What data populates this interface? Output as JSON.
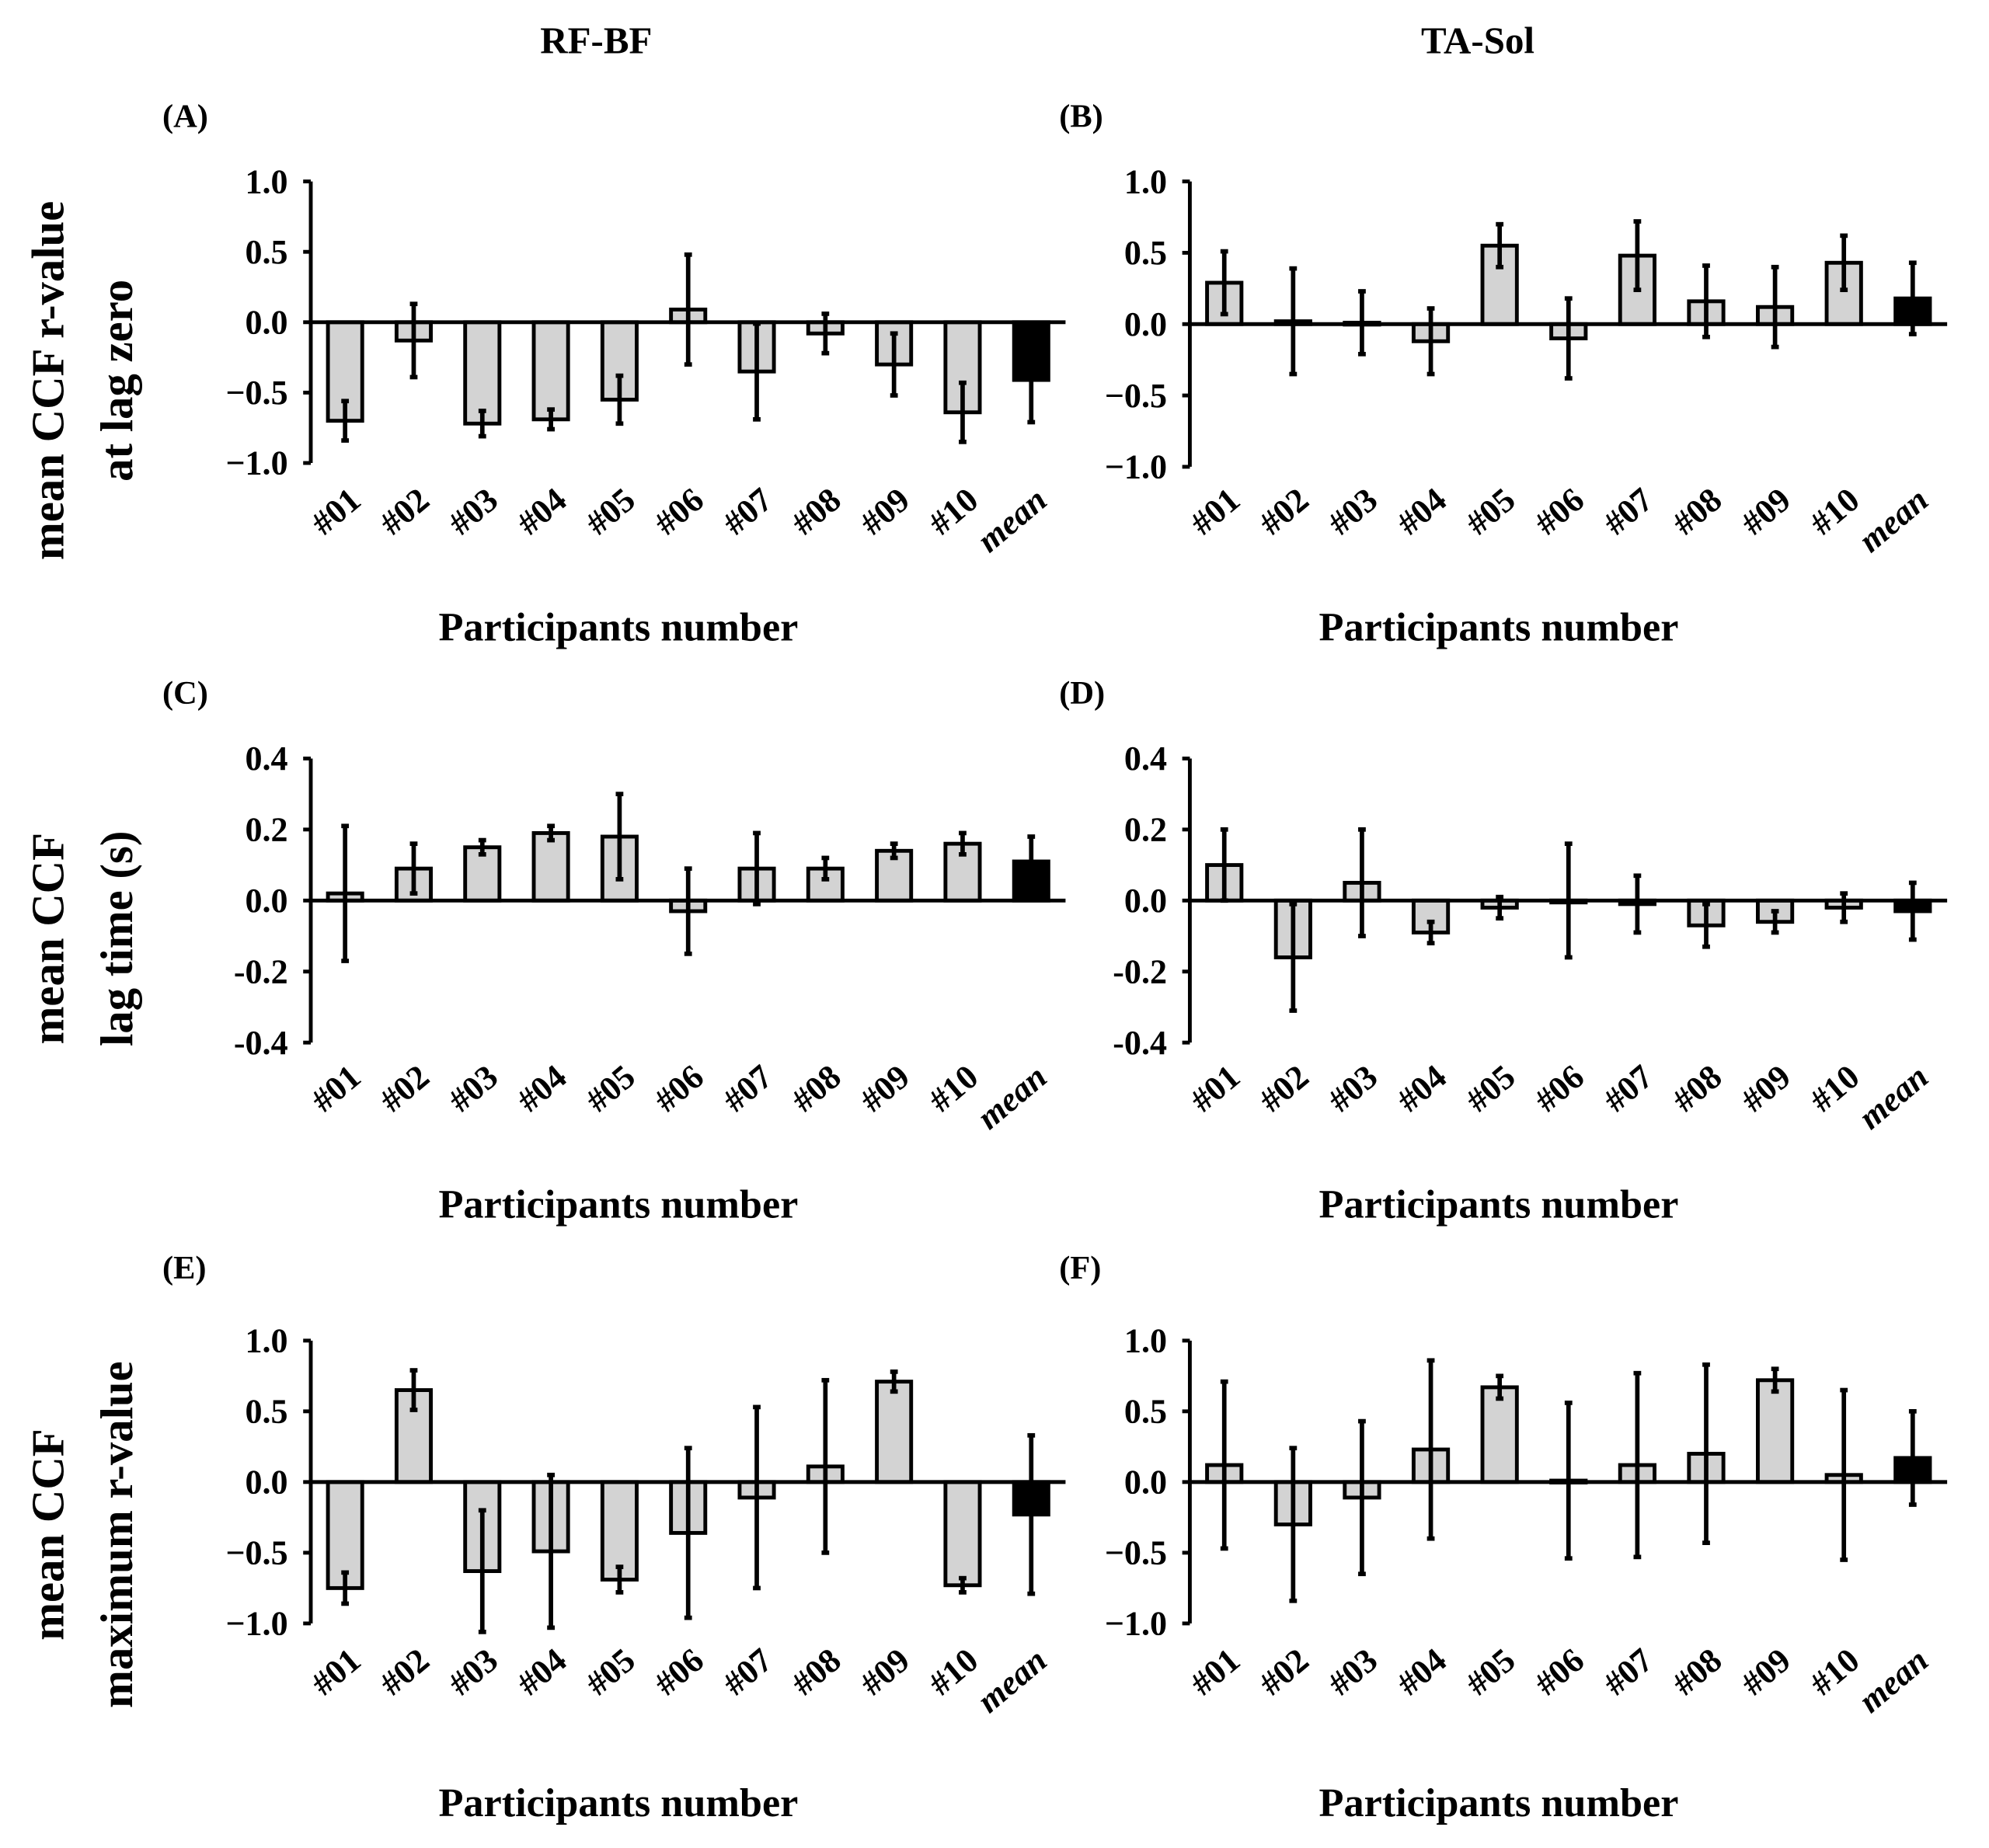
{
  "column_titles": [
    "RF-BF",
    "TA-Sol"
  ],
  "row_ylabels": [
    [
      "mean CCF r-value",
      "at lag zero"
    ],
    [
      "mean CCF",
      "lag time (s)"
    ],
    [
      "mean CCF",
      "maximum r-value"
    ]
  ],
  "colors": {
    "bar": "#d3d3d3",
    "mean_bar": "#000000",
    "stroke": "#000000"
  },
  "chart_data": [
    {
      "panel": "(A)",
      "type": "bar",
      "xlabel": "Participants number",
      "ylim": [
        -1.0,
        1.0
      ],
      "ticks": [
        "1.0",
        "0.5",
        "0.0",
        "−0.5",
        "−1.0"
      ],
      "tick_values": [
        1.0,
        0.5,
        0.0,
        -0.5,
        -1.0
      ],
      "categories": [
        "#01",
        "#02",
        "#03",
        "#04",
        "#05",
        "#06",
        "#07",
        "#08",
        "#09",
        "#10",
        "mean"
      ],
      "values": [
        -0.7,
        -0.13,
        -0.72,
        -0.69,
        -0.55,
        0.09,
        -0.35,
        -0.08,
        -0.3,
        -0.64,
        -0.41
      ],
      "errors": [
        0.14,
        0.26,
        0.09,
        0.07,
        0.17,
        0.39,
        0.34,
        0.14,
        0.22,
        0.21,
        0.3
      ]
    },
    {
      "panel": "(B)",
      "type": "bar",
      "xlabel": "Participants number",
      "ylim": [
        -1.0,
        1.0
      ],
      "ticks": [
        "1.0",
        "0.5",
        "0.0",
        "−0.5",
        "−1.0"
      ],
      "tick_values": [
        1.0,
        0.5,
        0.0,
        -0.5,
        -1.0
      ],
      "categories": [
        "#01",
        "#02",
        "#03",
        "#04",
        "#05",
        "#06",
        "#07",
        "#08",
        "#09",
        "#10",
        "mean"
      ],
      "values": [
        0.29,
        0.02,
        0.01,
        -0.12,
        0.55,
        -0.1,
        0.48,
        0.16,
        0.12,
        0.43,
        0.18
      ],
      "errors": [
        0.22,
        0.37,
        0.22,
        0.23,
        0.15,
        0.28,
        0.24,
        0.25,
        0.28,
        0.19,
        0.25
      ]
    },
    {
      "panel": "(C)",
      "type": "bar",
      "xlabel": "Participants number",
      "ylim": [
        -0.4,
        0.4
      ],
      "ticks": [
        "0.4",
        "0.2",
        "0.0",
        "-0.2",
        "-0.4"
      ],
      "tick_values": [
        0.4,
        0.2,
        0.0,
        -0.2,
        -0.4
      ],
      "categories": [
        "#01",
        "#02",
        "#03",
        "#04",
        "#05",
        "#06",
        "#07",
        "#08",
        "#09",
        "#10",
        "mean"
      ],
      "values": [
        0.02,
        0.09,
        0.15,
        0.19,
        0.18,
        -0.03,
        0.09,
        0.09,
        0.14,
        0.16,
        0.11
      ],
      "errors": [
        0.19,
        0.07,
        0.02,
        0.02,
        0.12,
        0.12,
        0.1,
        0.03,
        0.02,
        0.03,
        0.07
      ]
    },
    {
      "panel": "(D)",
      "type": "bar",
      "xlabel": "Participants number",
      "ylim": [
        -0.4,
        0.4
      ],
      "ticks": [
        "0.4",
        "0.2",
        "0.0",
        "-0.2",
        "-0.4"
      ],
      "tick_values": [
        0.4,
        0.2,
        0.0,
        -0.2,
        -0.4
      ],
      "categories": [
        "#01",
        "#02",
        "#03",
        "#04",
        "#05",
        "#06",
        "#07",
        "#08",
        "#09",
        "#10",
        "mean"
      ],
      "values": [
        0.1,
        -0.16,
        0.05,
        -0.09,
        -0.02,
        0.0,
        -0.01,
        -0.07,
        -0.06,
        -0.02,
        -0.03
      ],
      "errors": [
        0.1,
        0.15,
        0.15,
        0.03,
        0.03,
        0.16,
        0.08,
        0.06,
        0.03,
        0.04,
        0.08
      ]
    },
    {
      "panel": "(E)",
      "type": "bar",
      "xlabel": "Participants number",
      "ylim": [
        -1.0,
        1.0
      ],
      "ticks": [
        "1.0",
        "0.5",
        "0.0",
        "−0.5",
        "−1.0"
      ],
      "tick_values": [
        1.0,
        0.5,
        0.0,
        -0.5,
        -1.0
      ],
      "categories": [
        "#01",
        "#02",
        "#03",
        "#04",
        "#05",
        "#06",
        "#07",
        "#08",
        "#09",
        "#10",
        "mean"
      ],
      "values": [
        -0.75,
        0.65,
        -0.63,
        -0.49,
        -0.69,
        -0.36,
        -0.11,
        0.11,
        0.71,
        -0.73,
        -0.23
      ],
      "errors": [
        0.11,
        0.14,
        0.43,
        0.54,
        0.09,
        0.6,
        0.64,
        0.61,
        0.07,
        0.05,
        0.56
      ]
    },
    {
      "panel": "(F)",
      "type": "bar",
      "xlabel": "Participants number",
      "ylim": [
        -1.0,
        1.0
      ],
      "ticks": [
        "1.0",
        "0.5",
        "0.0",
        "−0.5",
        "−1.0"
      ],
      "tick_values": [
        1.0,
        0.5,
        0.0,
        -0.5,
        -1.0
      ],
      "categories": [
        "#01",
        "#02",
        "#03",
        "#04",
        "#05",
        "#06",
        "#07",
        "#08",
        "#09",
        "#10",
        "mean"
      ],
      "values": [
        0.12,
        -0.3,
        -0.11,
        0.23,
        0.67,
        0.01,
        0.12,
        0.2,
        0.72,
        0.05,
        0.17
      ],
      "errors": [
        0.59,
        0.54,
        0.54,
        0.63,
        0.08,
        0.55,
        0.65,
        0.63,
        0.08,
        0.6,
        0.33
      ]
    }
  ]
}
